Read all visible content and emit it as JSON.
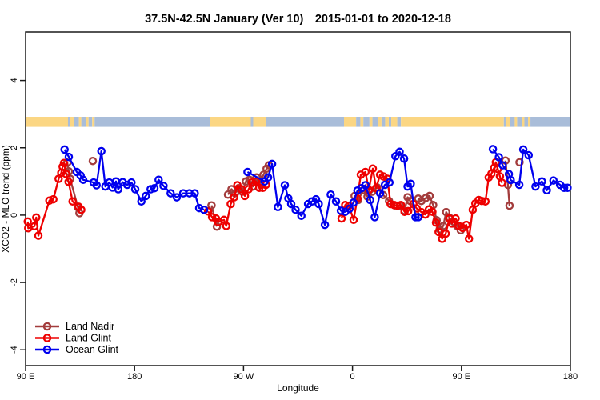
{
  "chart_data": {
    "type": "line",
    "title": "37.5N-42.5N January (Ver 10)  2015-01-01 to 2020-12-18",
    "xlabel": "Longitude",
    "ylabel": "XCO2 - MLO trend (ppm)",
    "grid": false,
    "x_axis": {
      "range_deg": [
        0,
        450
      ],
      "ticks": [
        {
          "deg": 0,
          "label": "90 E"
        },
        {
          "deg": 90,
          "label": "180"
        },
        {
          "deg": 180,
          "label": "90 W"
        },
        {
          "deg": 270,
          "label": "0"
        },
        {
          "deg": 360,
          "label": "90 E"
        },
        {
          "deg": 450,
          "label": "180"
        }
      ]
    },
    "y_axis": {
      "range": [
        -4.47,
        5.44
      ],
      "ticks": [
        -4,
        -2,
        0,
        2,
        4
      ]
    },
    "map_band": {
      "value_top": 2.92,
      "value_bottom": 2.62,
      "land_color": "#FBD683",
      "ocean_color": "#A9BDD9",
      "segments": [
        {
          "s": 0,
          "e": 35,
          "t": "land"
        },
        {
          "s": 35,
          "e": 37,
          "t": "ocean"
        },
        {
          "s": 37,
          "e": 40,
          "t": "land"
        },
        {
          "s": 40,
          "e": 44,
          "t": "ocean"
        },
        {
          "s": 44,
          "e": 46,
          "t": "land"
        },
        {
          "s": 46,
          "e": 50,
          "t": "ocean"
        },
        {
          "s": 50,
          "e": 52,
          "t": "land"
        },
        {
          "s": 52,
          "e": 55,
          "t": "ocean"
        },
        {
          "s": 55,
          "e": 57,
          "t": "land"
        },
        {
          "s": 57,
          "e": 152,
          "t": "ocean"
        },
        {
          "s": 152,
          "e": 186,
          "t": "land"
        },
        {
          "s": 186,
          "e": 188,
          "t": "ocean"
        },
        {
          "s": 188,
          "e": 198.5,
          "t": "land"
        },
        {
          "s": 198.5,
          "e": 263,
          "t": "ocean"
        },
        {
          "s": 263,
          "e": 273,
          "t": "land"
        },
        {
          "s": 273,
          "e": 276.5,
          "t": "ocean"
        },
        {
          "s": 276.5,
          "e": 279,
          "t": "land"
        },
        {
          "s": 279,
          "e": 284,
          "t": "ocean"
        },
        {
          "s": 284,
          "e": 286.5,
          "t": "land"
        },
        {
          "s": 286.5,
          "e": 291,
          "t": "ocean"
        },
        {
          "s": 291,
          "e": 294,
          "t": "land"
        },
        {
          "s": 294,
          "e": 297,
          "t": "ocean"
        },
        {
          "s": 297,
          "e": 300,
          "t": "land"
        },
        {
          "s": 300,
          "e": 302,
          "t": "ocean"
        },
        {
          "s": 302,
          "e": 307,
          "t": "land"
        },
        {
          "s": 307,
          "e": 310,
          "t": "ocean"
        },
        {
          "s": 310,
          "e": 395,
          "t": "land"
        },
        {
          "s": 395,
          "e": 397,
          "t": "ocean"
        },
        {
          "s": 397,
          "e": 400,
          "t": "land"
        },
        {
          "s": 400,
          "e": 404,
          "t": "ocean"
        },
        {
          "s": 404,
          "e": 406,
          "t": "land"
        },
        {
          "s": 406,
          "e": 410,
          "t": "ocean"
        },
        {
          "s": 410,
          "e": 412,
          "t": "land"
        },
        {
          "s": 412,
          "e": 415,
          "t": "ocean"
        },
        {
          "s": 415,
          "e": 417,
          "t": "land"
        },
        {
          "s": 417,
          "e": 450,
          "t": "ocean"
        }
      ]
    },
    "series": [
      {
        "name": "Land Nadir",
        "color": "#A33C3C",
        "segments": [
          [
            [
              34.4,
              1.56
            ],
            [
              35.7,
              1.3
            ],
            [
              36.8,
              1.08
            ],
            [
              43.2,
              0.23
            ],
            [
              44.5,
              0.06
            ]
          ],
          [
            [
              55.5,
              1.61
            ]
          ],
          [
            [
              153.6,
              0.29
            ],
            [
              158,
              -0.34
            ]
          ],
          [
            [
              167.2,
              0.61
            ],
            [
              170.1,
              0.77
            ],
            [
              173,
              0.65
            ],
            [
              176,
              0.8
            ],
            [
              179,
              0.7
            ],
            [
              182,
              1.0
            ],
            [
              184.9,
              1.05
            ],
            [
              187.8,
              0.85
            ],
            [
              190.8,
              1.12
            ],
            [
              193.7,
              0.95
            ],
            [
              196.5,
              1.2
            ],
            [
              199.1,
              1.38
            ],
            [
              200.9,
              1.48
            ]
          ],
          [
            [
              271.8,
              0.57
            ],
            [
              274.7,
              0.45
            ],
            [
              278.9,
              0.74
            ],
            [
              282.4,
              0.55
            ],
            [
              286.4,
              0.7
            ],
            [
              290.4,
              0.82
            ],
            [
              295.4,
              0.6
            ],
            [
              300.2,
              0.42
            ],
            [
              304.8,
              0.29
            ],
            [
              309.1,
              0.28
            ],
            [
              313,
              0.13
            ],
            [
              315.5,
              0.53
            ],
            [
              317.7,
              0.42
            ]
          ],
          [
            [
              324.3,
              0.49
            ],
            [
              326.9,
              0.42
            ],
            [
              330.6,
              0.51
            ],
            [
              333.7,
              0.57
            ],
            [
              336.6,
              0.3
            ],
            [
              339.5,
              -0.15
            ],
            [
              342,
              -0.42
            ],
            [
              345,
              -0.32
            ],
            [
              347.4,
              0.09
            ],
            [
              350.3,
              -0.08
            ],
            [
              353.8,
              -0.2
            ],
            [
              356.7,
              -0.33
            ],
            [
              359.4,
              -0.45
            ]
          ],
          [
            [
              396.4,
              1.62
            ],
            [
              398.4,
              0.9
            ],
            [
              399.7,
              0.28
            ]
          ],
          [
            [
              408,
              1.57
            ]
          ]
        ]
      },
      {
        "name": "Land Glint",
        "color": "#EE0000",
        "segments": [
          [
            [
              1.8,
              -0.19
            ],
            [
              2.2,
              -0.39
            ],
            [
              7.3,
              -0.33
            ],
            [
              8.8,
              -0.07
            ],
            [
              10.6,
              -0.61
            ],
            [
              19.6,
              0.43
            ],
            [
              22.9,
              0.47
            ],
            [
              27.3,
              1.08
            ],
            [
              29.5,
              1.26
            ],
            [
              30.6,
              1.44
            ],
            [
              31.7,
              1.55
            ],
            [
              33.5,
              1.22
            ],
            [
              35.5,
              0.99
            ],
            [
              38.8,
              0.41
            ],
            [
              43.8,
              0.25
            ],
            [
              46,
              0.16
            ]
          ],
          [
            [
              150.7,
              0.11
            ],
            [
              154,
              -0.06
            ],
            [
              157.3,
              -0.1
            ],
            [
              159.1,
              -0.21
            ],
            [
              163.9,
              -0.14
            ],
            [
              165.7,
              -0.32
            ],
            [
              169.4,
              0.33
            ],
            [
              172.3,
              0.53
            ],
            [
              174.9,
              0.89
            ],
            [
              178.2,
              0.77
            ],
            [
              181.1,
              0.57
            ],
            [
              184.2,
              0.77
            ],
            [
              187,
              0.97
            ],
            [
              190.3,
              1.0
            ],
            [
              193,
              0.81
            ],
            [
              195.9,
              0.81
            ],
            [
              198.5,
              0.9
            ]
          ],
          [
            [
              261,
              -0.1
            ],
            [
              264,
              0.3
            ],
            [
              267,
              0.28
            ],
            [
              270.9,
              -0.14
            ],
            [
              274,
              0.5
            ],
            [
              276.9,
              1.2
            ],
            [
              280.7,
              1.28
            ],
            [
              283.5,
              0.75
            ],
            [
              286.8,
              1.38
            ],
            [
              289.5,
              0.8
            ],
            [
              292.8,
              1.2
            ],
            [
              295.5,
              1.15
            ],
            [
              298.8,
              1.08
            ],
            [
              301.5,
              0.33
            ],
            [
              304.5,
              0.3
            ],
            [
              307,
              0.28
            ],
            [
              310,
              0.3
            ],
            [
              313,
              0.1
            ],
            [
              316,
              0.12
            ],
            [
              320.3,
              0.33
            ],
            [
              323,
              0.2
            ],
            [
              326.9,
              0.09
            ],
            [
              330.2,
              0.02
            ],
            [
              333.1,
              0.17
            ],
            [
              336,
              0.1
            ],
            [
              339,
              -0.22
            ],
            [
              341.2,
              -0.5
            ],
            [
              344.1,
              -0.7
            ],
            [
              347,
              -0.55
            ],
            [
              350,
              -0.1
            ],
            [
              352.2,
              -0.25
            ],
            [
              355.2,
              -0.1
            ],
            [
              357.8,
              -0.32
            ],
            [
              360.9,
              -0.38
            ],
            [
              364,
              -0.29
            ],
            [
              366.2,
              -0.7
            ],
            [
              369.3,
              0.16
            ],
            [
              371.5,
              0.35
            ],
            [
              374.3,
              0.45
            ],
            [
              376.8,
              0.42
            ],
            [
              379.8,
              0.41
            ],
            [
              382.5,
              1.12
            ],
            [
              384.7,
              1.23
            ],
            [
              387.1,
              1.41
            ],
            [
              388.4,
              1.57
            ],
            [
              390,
              1.37
            ],
            [
              391.8,
              1.15
            ],
            [
              393.5,
              0.96
            ]
          ]
        ]
      },
      {
        "name": "Ocean Glint",
        "color": "#0000EE",
        "segments": [
          [
            [
              32.2,
              1.95
            ],
            [
              35.7,
              1.73
            ],
            [
              42.3,
              1.28
            ],
            [
              45.4,
              1.18
            ],
            [
              47.6,
              1.05
            ],
            [
              56.2,
              0.97
            ],
            [
              58.6,
              0.89
            ],
            [
              62.6,
              1.9
            ],
            [
              65.9,
              0.85
            ],
            [
              69.2,
              0.97
            ],
            [
              71.8,
              0.82
            ],
            [
              74.7,
              1.0
            ],
            [
              76.5,
              0.77
            ],
            [
              80.2,
              0.98
            ],
            [
              83.9,
              0.9
            ],
            [
              87.4,
              0.97
            ],
            [
              90.5,
              0.77
            ],
            [
              95.6,
              0.41
            ],
            [
              99.3,
              0.57
            ],
            [
              103.3,
              0.77
            ],
            [
              106.4,
              0.8
            ],
            [
              109.9,
              1.05
            ],
            [
              113.9,
              0.87
            ],
            [
              119.8,
              0.65
            ],
            [
              124.9,
              0.53
            ],
            [
              130.2,
              0.65
            ],
            [
              135.3,
              0.65
            ],
            [
              139.7,
              0.65
            ],
            [
              143.4,
              0.21
            ],
            [
              147.4,
              0.16
            ]
          ],
          [
            [
              183.3,
              1.28
            ],
            [
              197.4,
              1.0
            ],
            [
              200.3,
              1.12
            ],
            [
              203.6,
              1.52
            ],
            [
              208.4,
              0.24
            ],
            [
              214.1,
              0.89
            ],
            [
              217,
              0.5
            ],
            [
              219.4,
              0.33
            ],
            [
              223,
              0.16
            ],
            [
              227.8,
              -0.02
            ],
            [
              233.3,
              0.33
            ],
            [
              236.6,
              0.41
            ],
            [
              239.9,
              0.47
            ],
            [
              242.1,
              0.33
            ],
            [
              247.2,
              -0.29
            ],
            [
              252,
              0.61
            ],
            [
              256.4,
              0.41
            ],
            [
              260.4,
              0.13
            ],
            [
              264,
              0.1
            ],
            [
              267.5,
              0.19
            ],
            [
              270.8,
              0.37
            ],
            [
              274.1,
              0.73
            ],
            [
              277.5,
              0.8
            ],
            [
              280.7,
              0.89
            ],
            [
              284.6,
              0.45
            ],
            [
              288.4,
              -0.06
            ],
            [
              292.8,
              0.65
            ],
            [
              296.8,
              0.9
            ],
            [
              300.5,
              0.97
            ],
            [
              305.5,
              1.75
            ],
            [
              308.9,
              1.88
            ],
            [
              312.6,
              1.68
            ],
            [
              315.5,
              0.85
            ],
            [
              318.1,
              0.93
            ],
            [
              322.1,
              -0.06
            ],
            [
              324.3,
              -0.06
            ]
          ],
          [
            [
              386,
              1.96
            ],
            [
              390.9,
              1.72
            ],
            [
              394.1,
              1.48
            ],
            [
              399.2,
              1.22
            ],
            [
              400.7,
              1.04
            ],
            [
              407.8,
              0.9
            ],
            [
              411.1,
              1.95
            ],
            [
              415.5,
              1.78
            ],
            [
              421.2,
              0.85
            ],
            [
              426.5,
              1.0
            ],
            [
              430.5,
              0.74
            ],
            [
              436,
              1.03
            ],
            [
              441.5,
              0.9
            ],
            [
              444.8,
              0.81
            ],
            [
              447.6,
              0.81
            ]
          ]
        ]
      }
    ],
    "legend": {
      "position": "bottom-left",
      "items": [
        "Land Nadir",
        "Land Glint",
        "Ocean Glint"
      ]
    }
  }
}
